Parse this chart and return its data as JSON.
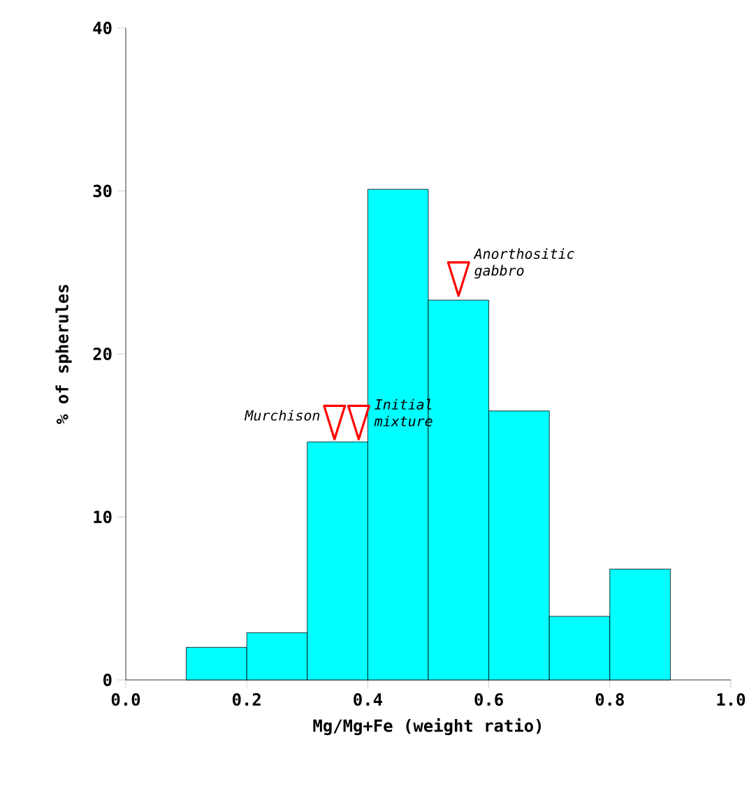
{
  "chart_data": {
    "type": "histogram",
    "bins": [
      0.1,
      0.2,
      0.3,
      0.4,
      0.5,
      0.6,
      0.7,
      0.8,
      0.9
    ],
    "values": [
      2.0,
      2.9,
      14.6,
      30.1,
      23.3,
      16.5,
      3.9,
      6.8
    ],
    "color": "#00ffff",
    "xlabel": "Mg/Mg+Fe (weight ratio)",
    "ylabel": "% of spherules",
    "xlim": [
      0,
      1
    ],
    "ylim": [
      0,
      40
    ],
    "xticks": [
      {
        "value": 0,
        "label": "0.0"
      },
      {
        "value": 0.2,
        "label": "0.2"
      },
      {
        "value": 0.4,
        "label": "0.4"
      },
      {
        "value": 0.6,
        "label": "0.6"
      },
      {
        "value": 0.8,
        "label": "0.8"
      },
      {
        "value": 1,
        "label": "1.0"
      }
    ],
    "yticks": [
      0,
      10,
      20,
      30,
      40
    ],
    "annotations": [
      {
        "text": "Murchison",
        "x": 0.345,
        "y": 14.7
      },
      {
        "text": "Initial mixture",
        "x": 0.385,
        "y": 14.7
      },
      {
        "text": "Anorthositic gabbro",
        "x": 0.55,
        "y": 23.5
      }
    ]
  }
}
